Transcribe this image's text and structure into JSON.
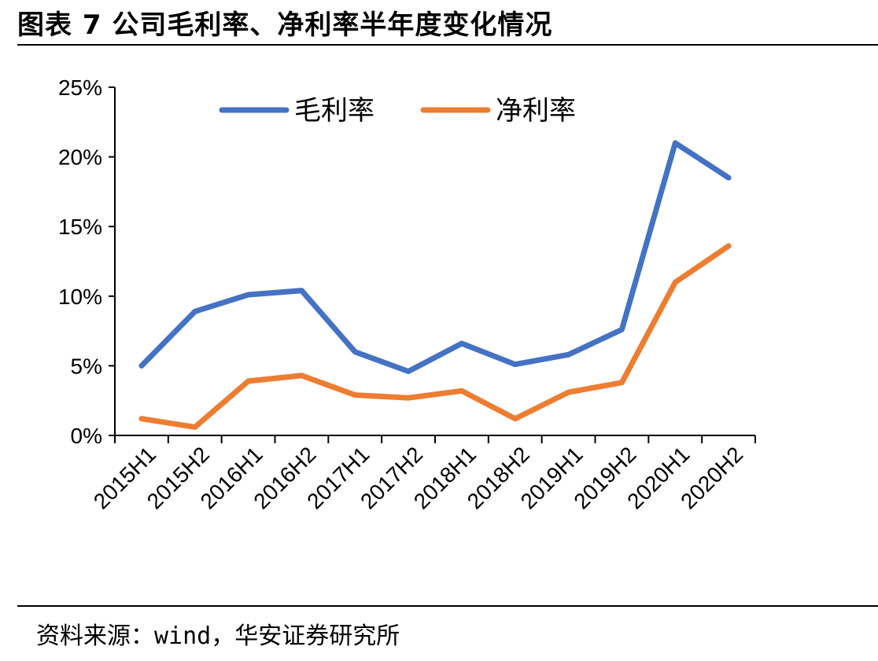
{
  "header": {
    "title": "图表 7 公司毛利率、净利率半年度变化情况"
  },
  "footer": {
    "source": "资料来源：wind，华安证券研究所"
  },
  "chart_data": {
    "type": "line",
    "title": "",
    "xlabel": "",
    "ylabel": "",
    "x": [
      "2015H1",
      "2015H2",
      "2016H1",
      "2016H2",
      "2017H1",
      "2017H2",
      "2018H1",
      "2018H2",
      "2019H1",
      "2019H2",
      "2020H1",
      "2020H2"
    ],
    "ylim": [
      0,
      25
    ],
    "yticks": [
      "0%",
      "5%",
      "10%",
      "15%",
      "20%",
      "25%"
    ],
    "grid": false,
    "legend_position": "top",
    "series": [
      {
        "name": "毛利率",
        "color": "#4472C4",
        "values": [
          5.0,
          8.9,
          10.1,
          10.4,
          6.0,
          4.6,
          6.6,
          5.1,
          5.8,
          7.6,
          21.0,
          18.5
        ]
      },
      {
        "name": "净利率",
        "color": "#ED7D31",
        "values": [
          1.2,
          0.6,
          3.9,
          4.3,
          2.9,
          2.7,
          3.2,
          1.2,
          3.1,
          3.8,
          11.0,
          13.6
        ]
      }
    ]
  }
}
